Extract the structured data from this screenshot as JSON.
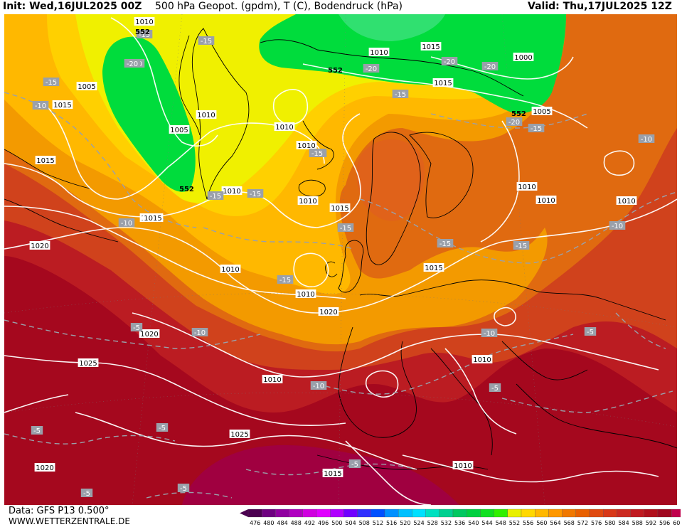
{
  "header": {
    "init": "Init: Wed,16JUL2025 00Z",
    "title": "500 hPa Geopot. (gpdm), T (C), Bodendruck (hPa)",
    "valid": "Valid: Thu,17JUL2025 12Z"
  },
  "footer": {
    "data_source": "Data: GFS P13 0.500°",
    "website": "WWW.WETTERZENTRALE.DE"
  },
  "legend": {
    "levels": [
      "476",
      "480",
      "484",
      "488",
      "492",
      "496",
      "500",
      "504",
      "508",
      "512",
      "516",
      "520",
      "524",
      "528",
      "532",
      "536",
      "540",
      "544",
      "548",
      "552",
      "556",
      "560",
      "564",
      "568",
      "572",
      "576",
      "580",
      "584",
      "588",
      "592",
      "596",
      "600"
    ],
    "colors": [
      "#4b0050",
      "#6e0080",
      "#9000a0",
      "#b000c0",
      "#d000e0",
      "#e000ff",
      "#b000ff",
      "#7000ff",
      "#3030ff",
      "#0050ff",
      "#0090ff",
      "#00c0ff",
      "#00e0ff",
      "#00e0c0",
      "#00d090",
      "#00c860",
      "#00d040",
      "#10e020",
      "#30f000",
      "#e8f000",
      "#ffd800",
      "#ffb800",
      "#ff9800",
      "#f07800",
      "#e86000",
      "#e04a10",
      "#d83818",
      "#cc2a20",
      "#c01a20",
      "#b0101c",
      "#a00820",
      "#c0004c"
    ]
  },
  "map": {
    "geopotential_fills": [
      {
        "level": "532-548",
        "color": "#00dc3c"
      },
      {
        "level": "552-560",
        "color": "#f0f000"
      },
      {
        "level": "560-568",
        "color": "#ffc000"
      },
      {
        "level": "568-576",
        "color": "#f39a00"
      },
      {
        "level": "576-584",
        "color": "#e06a10"
      },
      {
        "level": "584-588",
        "color": "#d0421c"
      },
      {
        "level": "588-592",
        "color": "#bb1c22"
      },
      {
        "level": "592-596",
        "color": "#a5081e"
      },
      {
        "level": "596-600",
        "color": "#a00040"
      }
    ],
    "isobar_labels": [
      {
        "text": "1010"
      },
      {
        "text": "1005"
      },
      {
        "text": "1015"
      },
      {
        "text": "1010"
      },
      {
        "text": "1005"
      },
      {
        "text": "1010"
      },
      {
        "text": "1015"
      },
      {
        "text": "1010"
      },
      {
        "text": "1010"
      },
      {
        "text": "1010"
      },
      {
        "text": "1000"
      },
      {
        "text": "1015"
      },
      {
        "text": "1005"
      },
      {
        "text": "1015"
      },
      {
        "text": "1020"
      },
      {
        "text": "1010"
      },
      {
        "text": "1010"
      },
      {
        "text": "1015"
      },
      {
        "text": "1015"
      },
      {
        "text": "1010"
      },
      {
        "text": "1010"
      },
      {
        "text": "1010"
      },
      {
        "text": "1015"
      },
      {
        "text": "1020"
      },
      {
        "text": "1025"
      },
      {
        "text": "1020"
      },
      {
        "text": "1025"
      },
      {
        "text": "1010"
      },
      {
        "text": "1020"
      },
      {
        "text": "1015"
      },
      {
        "text": "1010"
      },
      {
        "text": "1010"
      },
      {
        "text": "1010"
      },
      {
        "text": "1015"
      }
    ],
    "temperature_labels": [
      {
        "text": "-15"
      },
      {
        "text": "-15"
      },
      {
        "text": "-20"
      },
      {
        "text": "-15"
      },
      {
        "text": "-10"
      },
      {
        "text": "-20"
      },
      {
        "text": "-15"
      },
      {
        "text": "-20"
      },
      {
        "text": "-20"
      },
      {
        "text": "-20"
      },
      {
        "text": "-15"
      },
      {
        "text": "-15"
      },
      {
        "text": "-15"
      },
      {
        "text": "-10"
      },
      {
        "text": "-15"
      },
      {
        "text": "-15"
      },
      {
        "text": "-10"
      },
      {
        "text": "-15"
      },
      {
        "text": "-15"
      },
      {
        "text": "-15"
      },
      {
        "text": "-10"
      },
      {
        "text": "-10"
      },
      {
        "text": "-5"
      },
      {
        "text": "-10"
      },
      {
        "text": "-5"
      },
      {
        "text": "-10"
      },
      {
        "text": "-5"
      },
      {
        "text": "-5"
      },
      {
        "text": "-5"
      },
      {
        "text": "-5"
      },
      {
        "text": "-5"
      },
      {
        "text": "-5"
      },
      {
        "text": "-20"
      },
      {
        "text": "-15"
      }
    ],
    "geopotential_labels": [
      {
        "text": "552"
      },
      {
        "text": "552"
      },
      {
        "text": "552"
      },
      {
        "text": "552"
      }
    ]
  }
}
